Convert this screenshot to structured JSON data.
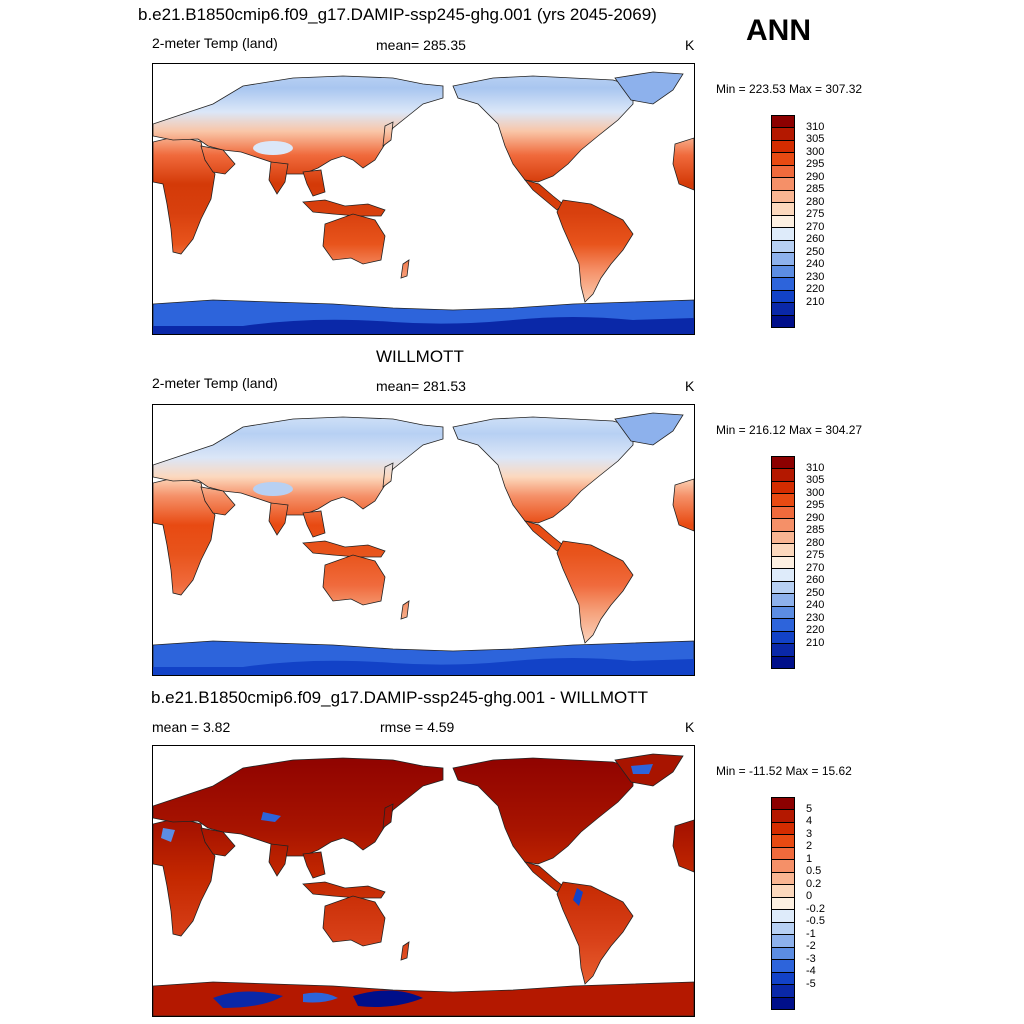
{
  "season": "ANN",
  "panels": [
    {
      "title": "b.e21.B1850cmip6.f09_g17.DAMIP-ssp245-ghg.001 (yrs 2045-2069)",
      "left_label": "2-meter Temp (land)",
      "center_label": "mean= 285.35",
      "units": "K",
      "minmax": "Min = 223.53 Max = 307.32",
      "colorbar": {
        "labels": [
          "310",
          "305",
          "300",
          "295",
          "290",
          "285",
          "280",
          "275",
          "270",
          "260",
          "250",
          "240",
          "230",
          "220",
          "210"
        ],
        "colors": [
          "#8c0000",
          "#b41800",
          "#d42c00",
          "#e84a12",
          "#f06a3c",
          "#f59068",
          "#f9b592",
          "#fcd8bd",
          "#fdf0e2",
          "#deebfa",
          "#b7d0f3",
          "#8db1ec",
          "#5c8de3",
          "#2d64db",
          "#1242c7",
          "#0a28a8",
          "#000f8a"
        ]
      },
      "map_variant": "model"
    },
    {
      "title": "WILLMOTT",
      "left_label": "2-meter Temp (land)",
      "center_label": "mean= 281.53",
      "units": "K",
      "minmax": "Min = 216.12 Max = 304.27",
      "colorbar": {
        "labels": [
          "310",
          "305",
          "300",
          "295",
          "290",
          "285",
          "280",
          "275",
          "270",
          "260",
          "250",
          "240",
          "230",
          "220",
          "210"
        ],
        "colors": [
          "#8c0000",
          "#b41800",
          "#d42c00",
          "#e84a12",
          "#f06a3c",
          "#f59068",
          "#f9b592",
          "#fcd8bd",
          "#fdf0e2",
          "#deebfa",
          "#b7d0f3",
          "#8db1ec",
          "#5c8de3",
          "#2d64db",
          "#1242c7",
          "#0a28a8",
          "#000f8a"
        ]
      },
      "map_variant": "obs"
    },
    {
      "title": "b.e21.B1850cmip6.f09_g17.DAMIP-ssp245-ghg.001 - WILLMOTT",
      "left_label": "mean =   3.82",
      "center_label": "rmse =   4.59",
      "units": "K",
      "minmax": "Min = -11.52 Max =  15.62",
      "colorbar": {
        "labels": [
          "5",
          "4",
          "3",
          "2",
          "1",
          "0.5",
          "0.2",
          "0",
          "-0.2",
          "-0.5",
          "-1",
          "-2",
          "-3",
          "-4",
          "-5"
        ],
        "colors": [
          "#8c0000",
          "#b41800",
          "#d42c00",
          "#e84a12",
          "#f06a3c",
          "#f59068",
          "#f9b592",
          "#fcd8bd",
          "#fdf0e2",
          "#deebfa",
          "#b7d0f3",
          "#8db1ec",
          "#5c8de3",
          "#2d64db",
          "#1242c7",
          "#0a28a8",
          "#000f8a"
        ]
      },
      "map_variant": "diff"
    }
  ]
}
